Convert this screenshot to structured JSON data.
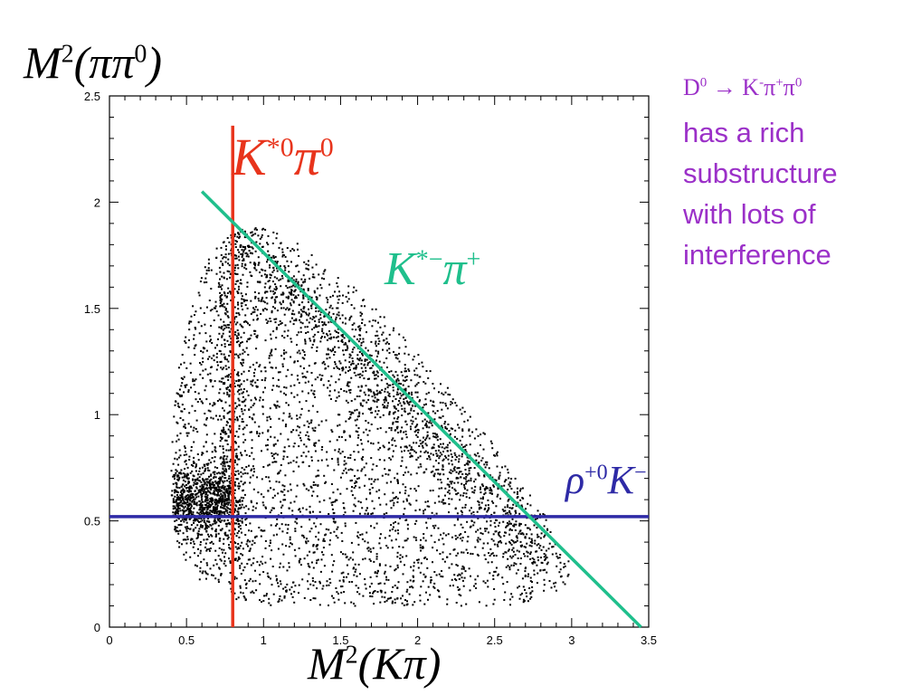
{
  "chart_data": {
    "type": "scatter",
    "title": "",
    "xlabel_parts": {
      "main": "M",
      "sup": "2",
      "arg": "(Kπ)"
    },
    "ylabel_parts": {
      "main": "M",
      "sup": "2",
      "arg": "(ππ",
      "argsup": "0",
      "close": ")"
    },
    "xlim": [
      0,
      3.5
    ],
    "ylim": [
      0,
      2.5
    ],
    "xticks": [
      "0",
      "0.5",
      "1",
      "1.5",
      "2",
      "2.5",
      "3",
      "3.5"
    ],
    "yticks": [
      "0",
      "0.5",
      "1",
      "1.5",
      "2",
      "2.5"
    ],
    "grid": false,
    "point_color": "#000000",
    "density_regions": [
      {
        "name": "K*0 band",
        "x": 0.8,
        "y_range": [
          0.3,
          1.95
        ],
        "width": 0.05,
        "count": 450
      },
      {
        "name": "rho band",
        "y": 0.6,
        "x_range": [
          0.4,
          0.8
        ],
        "height": 0.09,
        "count": 900
      },
      {
        "name": "K*- band",
        "line_from": [
          0.75,
          1.9
        ],
        "line_to": [
          2.85,
          0.3
        ],
        "width": 0.08,
        "count": 900
      },
      {
        "name": "diffuse",
        "count": 3000
      }
    ],
    "lines": [
      {
        "name": "K*0 resonance",
        "orientation": "vertical",
        "x": 0.8,
        "y_range": [
          0,
          2.36
        ],
        "color": "#e8341c"
      },
      {
        "name": "rho resonance",
        "orientation": "horizontal",
        "y": 0.52,
        "x_range": [
          0,
          3.5
        ],
        "color": "#2e2aa6"
      },
      {
        "name": "K*- resonance",
        "orientation": "diagonal",
        "from": [
          0.6,
          2.05
        ],
        "to": [
          3.45,
          0
        ],
        "color": "#1fbf8c"
      }
    ],
    "annotations": [
      {
        "text_main": "K",
        "text_sup": "*0",
        "text_tail": "π",
        "text_tail_sup": "0",
        "color": "#e8341c"
      },
      {
        "text_main": "K",
        "text_sup": "*−",
        "text_tail": "π",
        "text_tail_sup": "+",
        "color": "#1fbf8c"
      },
      {
        "text_main": "ρ",
        "text_sup": "+0",
        "text_tail": "K",
        "text_tail_sup": "−",
        "color": "#2e2aa6"
      }
    ]
  },
  "side_panel": {
    "decay": {
      "d": "D",
      "d_sup": "0",
      "arrow": "→",
      "k": "K",
      "k_sup": "-",
      "pi1": "π",
      "pi1_sup": "+",
      "pi2": "π",
      "pi2_sup": "0"
    },
    "lines": [
      "has a rich",
      "substructure",
      "with lots of",
      "interference"
    ],
    "color": "#9b30c8"
  }
}
